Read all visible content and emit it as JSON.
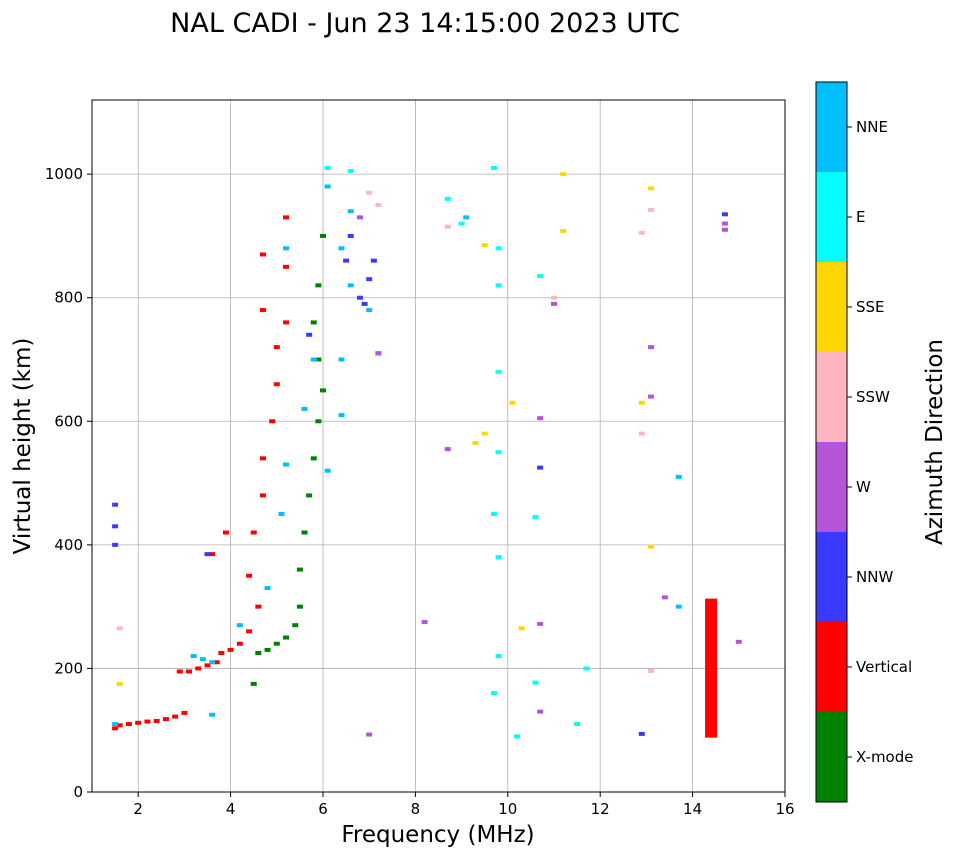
{
  "chart_data": {
    "type": "scatter",
    "title": "NAL CADI - Jun 23 14:15:00 2023 UTC",
    "xlabel": "Frequency (MHz)",
    "ylabel": "Virtual height (km)",
    "xlim": [
      1,
      16
    ],
    "ylim": [
      0,
      1120
    ],
    "xticks": [
      2,
      4,
      6,
      8,
      10,
      12,
      14,
      16
    ],
    "yticks": [
      0,
      200,
      400,
      600,
      800,
      1000
    ],
    "grid": true,
    "colorbar": {
      "label": "Azimuth Direction",
      "categories": [
        {
          "name": "X-mode",
          "color": "#008000"
        },
        {
          "name": "Vertical",
          "color": "#ff0000"
        },
        {
          "name": "NNW",
          "color": "#3a3aff"
        },
        {
          "name": "W",
          "color": "#b455d8"
        },
        {
          "name": "SSW",
          "color": "#ffb6c1"
        },
        {
          "name": "SSE",
          "color": "#ffd700"
        },
        {
          "name": "E",
          "color": "#00ffff"
        },
        {
          "name": "NNE",
          "color": "#00bfff"
        }
      ]
    },
    "traces": [
      {
        "name": "Vertical",
        "points": [
          [
            1.5,
            103
          ],
          [
            1.6,
            108
          ],
          [
            1.8,
            110
          ],
          [
            2.0,
            112
          ],
          [
            2.2,
            114
          ],
          [
            2.4,
            115
          ],
          [
            2.6,
            118
          ],
          [
            2.8,
            122
          ],
          [
            3.0,
            128
          ],
          [
            2.9,
            195
          ],
          [
            3.1,
            195
          ],
          [
            3.3,
            200
          ],
          [
            3.5,
            205
          ],
          [
            3.7,
            210
          ],
          [
            3.8,
            225
          ],
          [
            4.0,
            230
          ],
          [
            4.2,
            240
          ],
          [
            4.4,
            260
          ],
          [
            4.6,
            300
          ],
          [
            4.4,
            350
          ],
          [
            4.5,
            420
          ],
          [
            4.7,
            480
          ],
          [
            4.7,
            540
          ],
          [
            4.9,
            600
          ],
          [
            5.0,
            660
          ],
          [
            5.0,
            720
          ],
          [
            4.7,
            780
          ],
          [
            5.2,
            850
          ],
          [
            5.2,
            930
          ],
          [
            4.7,
            870
          ],
          [
            3.6,
            385
          ],
          [
            3.9,
            420
          ],
          [
            5.2,
            760
          ]
        ]
      },
      {
        "name": "X-mode",
        "points": [
          [
            4.6,
            225
          ],
          [
            4.8,
            230
          ],
          [
            5.0,
            240
          ],
          [
            5.2,
            250
          ],
          [
            5.4,
            270
          ],
          [
            5.5,
            300
          ],
          [
            5.5,
            360
          ],
          [
            5.6,
            420
          ],
          [
            5.7,
            480
          ],
          [
            5.8,
            540
          ],
          [
            5.9,
            600
          ],
          [
            6.0,
            650
          ],
          [
            5.9,
            700
          ],
          [
            5.8,
            760
          ],
          [
            5.9,
            820
          ],
          [
            6.0,
            900
          ],
          [
            4.5,
            175
          ]
        ]
      },
      {
        "name": "NNE",
        "points": [
          [
            3.2,
            220
          ],
          [
            3.4,
            215
          ],
          [
            3.6,
            210
          ],
          [
            4.2,
            270
          ],
          [
            4.8,
            330
          ],
          [
            5.1,
            450
          ],
          [
            5.2,
            530
          ],
          [
            5.6,
            620
          ],
          [
            5.8,
            700
          ],
          [
            6.1,
            520
          ],
          [
            6.4,
            610
          ],
          [
            6.4,
            700
          ],
          [
            6.6,
            820
          ],
          [
            6.4,
            880
          ],
          [
            6.6,
            940
          ],
          [
            6.1,
            980
          ],
          [
            9.1,
            930
          ],
          [
            13.7,
            510
          ],
          [
            14.4,
            240
          ],
          [
            13.7,
            300
          ],
          [
            1.5,
            110
          ],
          [
            3.6,
            125
          ],
          [
            7.0,
            780
          ],
          [
            5.2,
            880
          ]
        ]
      },
      {
        "name": "NNW",
        "points": [
          [
            6.8,
            800
          ],
          [
            7.0,
            830
          ],
          [
            6.5,
            860
          ],
          [
            6.6,
            900
          ],
          [
            7.1,
            860
          ],
          [
            7.2,
            710
          ],
          [
            5.7,
            740
          ],
          [
            14.7,
            935
          ],
          [
            12.9,
            94
          ],
          [
            10.7,
            525
          ],
          [
            1.5,
            400
          ],
          [
            1.5,
            430
          ],
          [
            1.5,
            465
          ],
          [
            3.5,
            385
          ],
          [
            6.9,
            790
          ]
        ]
      },
      {
        "name": "W",
        "points": [
          [
            6.8,
            930
          ],
          [
            7.2,
            710
          ],
          [
            8.7,
            555
          ],
          [
            10.7,
            605
          ],
          [
            11.0,
            790
          ],
          [
            13.1,
            720
          ],
          [
            13.1,
            640
          ],
          [
            14.7,
            910
          ],
          [
            14.7,
            920
          ],
          [
            15.0,
            243
          ],
          [
            13.4,
            315
          ],
          [
            10.7,
            272
          ],
          [
            10.7,
            130
          ],
          [
            7.0,
            93
          ],
          [
            8.2,
            275
          ]
        ]
      },
      {
        "name": "SSW",
        "points": [
          [
            7.0,
            970
          ],
          [
            8.7,
            915
          ],
          [
            11.0,
            800
          ],
          [
            12.9,
            905
          ],
          [
            13.1,
            942
          ],
          [
            13.1,
            196
          ],
          [
            1.6,
            265
          ],
          [
            12.9,
            580
          ],
          [
            7.2,
            950
          ]
        ]
      },
      {
        "name": "SSE",
        "points": [
          [
            9.3,
            565
          ],
          [
            9.5,
            580
          ],
          [
            12.9,
            630
          ],
          [
            13.1,
            977
          ],
          [
            13.1,
            397
          ],
          [
            10.1,
            630
          ],
          [
            11.2,
            1000
          ],
          [
            11.2,
            908
          ],
          [
            1.6,
            175
          ],
          [
            10.3,
            265
          ],
          [
            9.5,
            885
          ]
        ]
      },
      {
        "name": "E",
        "points": [
          [
            8.7,
            960
          ],
          [
            9.0,
            920
          ],
          [
            9.8,
            880
          ],
          [
            9.8,
            820
          ],
          [
            9.7,
            1010
          ],
          [
            9.8,
            680
          ],
          [
            9.8,
            550
          ],
          [
            9.7,
            450
          ],
          [
            9.8,
            380
          ],
          [
            9.8,
            220
          ],
          [
            9.7,
            160
          ],
          [
            10.2,
            90
          ],
          [
            10.6,
            177
          ],
          [
            10.6,
            445
          ],
          [
            10.7,
            835
          ],
          [
            11.5,
            110
          ],
          [
            11.7,
            200
          ],
          [
            6.6,
            1005
          ],
          [
            6.1,
            1010
          ]
        ]
      }
    ],
    "annotations": [
      {
        "name": "Vertical",
        "kind": "column",
        "x": 14.4,
        "y_min": 88,
        "y_max": 313
      }
    ]
  }
}
